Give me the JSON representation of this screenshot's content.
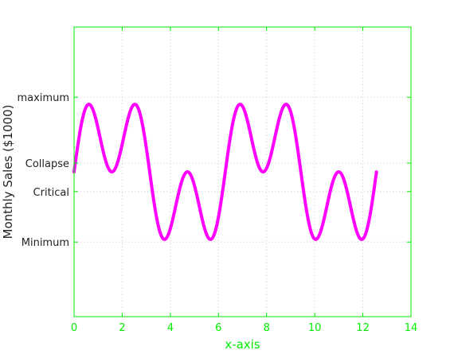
{
  "chart_data": {
    "type": "line",
    "title": "",
    "xlabel": "x-axis",
    "ylabel": "Monthly Sales ($1000)",
    "xlim": [
      0,
      14
    ],
    "ylim": [
      -3.3,
      3.3
    ],
    "grid": true,
    "x_ticks": [
      0,
      2,
      4,
      6,
      8,
      10,
      12,
      14
    ],
    "x_tick_labels": [
      "0",
      "2",
      "4",
      "6",
      "8",
      "10",
      "12",
      "14"
    ],
    "y_ticks": [
      {
        "value": 1.7,
        "label": "maximum"
      },
      {
        "value": 0.2,
        "label": "Collapse"
      },
      {
        "value": -0.45,
        "label": "Critical"
      },
      {
        "value": -1.6,
        "label": "Minimum"
      }
    ],
    "series": [
      {
        "function": "sin(x) + sin(3x)",
        "x_range": [
          0,
          12.566
        ],
        "samples": 500,
        "color": "#ff00ff"
      }
    ],
    "colors": {
      "axis": "#00ee00",
      "line": "#ff00ff",
      "ytick_text": "#222222",
      "grid": "#c8c8c8"
    }
  }
}
